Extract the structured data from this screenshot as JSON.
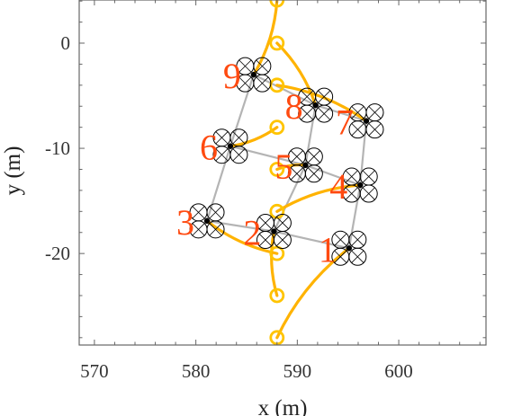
{
  "chart_data": {
    "type": "scatter",
    "xlabel": "x (m)",
    "ylabel": "y (m)",
    "xlim": [
      568.5,
      608.6
    ],
    "ylim": [
      -28.7,
      4.1
    ],
    "xticks": [
      570,
      580,
      590,
      600
    ],
    "yticks": [
      0,
      -10,
      -20
    ],
    "grid": false,
    "formation_edges": [
      [
        9,
        8
      ],
      [
        9,
        6
      ],
      [
        8,
        7
      ],
      [
        8,
        5
      ],
      [
        7,
        4
      ],
      [
        6,
        5
      ],
      [
        6,
        3
      ],
      [
        5,
        4
      ],
      [
        5,
        2
      ],
      [
        4,
        1
      ],
      [
        3,
        2
      ],
      [
        2,
        1
      ]
    ],
    "drones": [
      {
        "id": "9",
        "x": 585.7,
        "y": -3.0,
        "start": [
          588.0,
          4.1
        ]
      },
      {
        "id": "8",
        "x": 591.8,
        "y": -5.9,
        "start": [
          588.0,
          0.0
        ]
      },
      {
        "id": "7",
        "x": 596.8,
        "y": -7.4,
        "start": [
          588.0,
          -4.0
        ]
      },
      {
        "id": "6",
        "x": 583.4,
        "y": -9.8,
        "start": [
          588.0,
          -8.0
        ]
      },
      {
        "id": "5",
        "x": 590.8,
        "y": -11.6,
        "start": [
          588.0,
          -12.0
        ]
      },
      {
        "id": "4",
        "x": 596.2,
        "y": -13.5,
        "start": [
          588.0,
          -16.0
        ]
      },
      {
        "id": "3",
        "x": 581.1,
        "y": -16.9,
        "start": [
          588.0,
          -20.0
        ]
      },
      {
        "id": "2",
        "x": 587.7,
        "y": -17.9,
        "start": [
          588.0,
          -24.0
        ]
      },
      {
        "id": "1",
        "x": 595.1,
        "y": -19.5,
        "start": [
          588.0,
          -28.0
        ]
      }
    ],
    "colors": {
      "trajectory": "#ffb300",
      "start_marker": "#ffc400",
      "edge": "#b4b4b4",
      "label": "#ff4a10",
      "drone": "#000000"
    }
  }
}
